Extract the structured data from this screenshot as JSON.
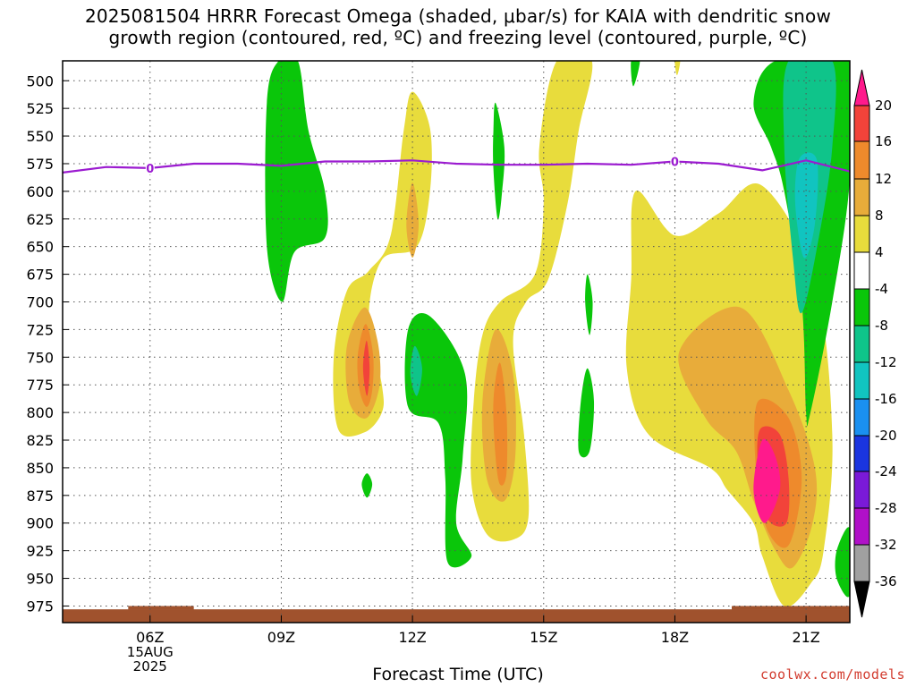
{
  "chart_data": {
    "type": "contour",
    "title_lines": [
      "2025081504 HRRR Forecast Omega (shaded, μbar/s) for KAIA with dendritic snow",
      "growth region (contoured, red, ºC) and freezing level (contoured, purple, ºC)"
    ],
    "xlabel": "Forecast Time (UTC)",
    "credit": "coolwx.com/models",
    "x_ticks": [
      {
        "label": "06Z",
        "hour": 6
      },
      {
        "label": "09Z",
        "hour": 9
      },
      {
        "label": "12Z",
        "hour": 12
      },
      {
        "label": "15Z",
        "hour": 15
      },
      {
        "label": "18Z",
        "hour": 18
      },
      {
        "label": "21Z",
        "hour": 21
      }
    ],
    "date_label_lines": [
      "15AUG",
      "2025"
    ],
    "x_range_hours": [
      4.0,
      22.0
    ],
    "y_axis": {
      "scale": "pressure (hPa), inverted",
      "range": [
        482,
        990
      ],
      "ticks": [
        500,
        525,
        550,
        575,
        600,
        625,
        650,
        675,
        700,
        725,
        750,
        775,
        800,
        825,
        850,
        875,
        900,
        925,
        950,
        975
      ]
    },
    "grid": true,
    "colorbar": {
      "position": "right",
      "labels": [
        "20",
        "16",
        "12",
        "8",
        "4",
        "-4",
        "-8",
        "-12",
        "-16",
        "-20",
        "-24",
        "-28",
        "-32",
        "-36"
      ],
      "boundaries": [
        20,
        16,
        12,
        8,
        4,
        -4,
        -8,
        -12,
        -16,
        -20,
        -24,
        -28,
        -32,
        -36
      ],
      "colors": [
        "#ff1a8c",
        "#f2433a",
        "#ee8a2c",
        "#e8ac3a",
        "#e8dc3c",
        "#ffffff",
        "#0ac60a",
        "#0fc48a",
        "#11c4c0",
        "#1a90f0",
        "#1a35e0",
        "#7a1ad8",
        "#b010c8",
        "#a0a0a0",
        "#000000"
      ]
    },
    "freezing_level": {
      "label": "0",
      "color": "#9b1bd0",
      "points": [
        [
          4.0,
          583
        ],
        [
          5.0,
          578
        ],
        [
          6.0,
          579
        ],
        [
          7.0,
          575
        ],
        [
          8.0,
          575
        ],
        [
          9.0,
          577
        ],
        [
          10.0,
          573
        ],
        [
          11.0,
          573
        ],
        [
          12.0,
          572
        ],
        [
          13.0,
          575
        ],
        [
          14.0,
          576
        ],
        [
          15.0,
          576
        ],
        [
          16.0,
          575
        ],
        [
          17.0,
          576
        ],
        [
          18.0,
          573
        ],
        [
          19.0,
          575
        ],
        [
          20.0,
          581
        ],
        [
          21.0,
          572
        ],
        [
          22.0,
          582
        ]
      ],
      "label_positions_hours": [
        6.0,
        18.0
      ]
    },
    "omega_regions": [
      {
        "color": "#0ac60a",
        "note": "-8",
        "points": [
          [
            8.94,
            482
          ],
          [
            9.38,
            482
          ],
          [
            9.62,
            545
          ],
          [
            10.0,
            600
          ],
          [
            10.0,
            642
          ],
          [
            9.3,
            655
          ],
          [
            9.02,
            700
          ],
          [
            8.67,
            650
          ],
          [
            8.67,
            520
          ]
        ]
      },
      {
        "color": "#e8dc3c",
        "note": "4",
        "points": [
          [
            12.0,
            510
          ],
          [
            12.4,
            543
          ],
          [
            12.4,
            600
          ],
          [
            12.1,
            650
          ],
          [
            11.3,
            662
          ],
          [
            11.0,
            715
          ],
          [
            11.3,
            775
          ],
          [
            11.3,
            800
          ],
          [
            10.9,
            818
          ],
          [
            10.3,
            815
          ],
          [
            10.2,
            750
          ],
          [
            10.5,
            690
          ],
          [
            11.0,
            672
          ],
          [
            11.5,
            640
          ],
          [
            11.8,
            545
          ]
        ]
      },
      {
        "color": "#e8ac3a",
        "note": "8",
        "points": [
          [
            12.0,
            592
          ],
          [
            12.14,
            630
          ],
          [
            12.0,
            660
          ],
          [
            11.86,
            630
          ]
        ]
      },
      {
        "color": "#e8ac3a",
        "note": "8",
        "points": [
          [
            10.9,
            705
          ],
          [
            11.2,
            735
          ],
          [
            11.25,
            775
          ],
          [
            10.95,
            805
          ],
          [
            10.55,
            790
          ],
          [
            10.5,
            740
          ]
        ]
      },
      {
        "color": "#ee8a2c",
        "note": "12",
        "points": [
          [
            10.93,
            720
          ],
          [
            11.1,
            748
          ],
          [
            11.08,
            780
          ],
          [
            10.95,
            795
          ],
          [
            10.78,
            778
          ],
          [
            10.75,
            748
          ]
        ]
      },
      {
        "color": "#f2433a",
        "note": "16",
        "points": [
          [
            10.95,
            735
          ],
          [
            11.02,
            760
          ],
          [
            10.96,
            785
          ],
          [
            10.87,
            760
          ]
        ]
      },
      {
        "color": "#0ac60a",
        "note": "-8",
        "points": [
          [
            10.96,
            855
          ],
          [
            11.08,
            865
          ],
          [
            10.96,
            877
          ],
          [
            10.84,
            865
          ]
        ]
      },
      {
        "color": "#0ac60a",
        "note": "-8",
        "points": [
          [
            11.9,
            725
          ],
          [
            12.4,
            713
          ],
          [
            13.2,
            765
          ],
          [
            13.15,
            840
          ],
          [
            13.0,
            900
          ],
          [
            13.35,
            930
          ],
          [
            12.8,
            935
          ],
          [
            12.75,
            860
          ],
          [
            12.6,
            810
          ],
          [
            11.9,
            795
          ]
        ]
      },
      {
        "color": "#0fc48a",
        "note": "-12",
        "points": [
          [
            12.05,
            740
          ],
          [
            12.22,
            760
          ],
          [
            12.1,
            785
          ],
          [
            11.95,
            765
          ]
        ]
      },
      {
        "color": "#0ac60a",
        "note": "-8",
        "points": [
          [
            13.9,
            520
          ],
          [
            14.1,
            560
          ],
          [
            14.05,
            600
          ],
          [
            13.95,
            625
          ],
          [
            13.85,
            580
          ],
          [
            13.85,
            545
          ]
        ]
      },
      {
        "color": "#e8dc3c",
        "note": "4",
        "points": [
          [
            15.3,
            482
          ],
          [
            16.1,
            482
          ],
          [
            15.8,
            545
          ],
          [
            15.55,
            610
          ],
          [
            15.1,
            680
          ],
          [
            14.6,
            700
          ],
          [
            14.3,
            735
          ],
          [
            14.55,
            820
          ],
          [
            14.65,
            895
          ],
          [
            14.3,
            915
          ],
          [
            13.7,
            910
          ],
          [
            13.35,
            865
          ],
          [
            13.4,
            790
          ],
          [
            13.6,
            730
          ],
          [
            14.0,
            700
          ],
          [
            14.8,
            675
          ],
          [
            15.0,
            610
          ],
          [
            14.9,
            560
          ]
        ]
      },
      {
        "color": "#e8ac3a",
        "note": "8",
        "points": [
          [
            13.9,
            725
          ],
          [
            14.3,
            765
          ],
          [
            14.35,
            840
          ],
          [
            14.1,
            880
          ],
          [
            13.7,
            860
          ],
          [
            13.6,
            790
          ]
        ]
      },
      {
        "color": "#ee8a2c",
        "note": "12",
        "points": [
          [
            14.0,
            755
          ],
          [
            14.15,
            800
          ],
          [
            14.15,
            855
          ],
          [
            14.0,
            865
          ],
          [
            13.9,
            840
          ],
          [
            13.85,
            790
          ]
        ]
      },
      {
        "color": "#0ac60a",
        "note": "-8",
        "points": [
          [
            16.0,
            675
          ],
          [
            16.12,
            700
          ],
          [
            16.05,
            730
          ],
          [
            15.95,
            700
          ]
        ]
      },
      {
        "color": "#0ac60a",
        "note": "-8",
        "points": [
          [
            16.0,
            760
          ],
          [
            16.15,
            790
          ],
          [
            16.05,
            835
          ],
          [
            15.8,
            835
          ],
          [
            15.85,
            790
          ]
        ]
      },
      {
        "color": "#0ac60a",
        "note": "-8",
        "points": [
          [
            17.0,
            482
          ],
          [
            17.2,
            482
          ],
          [
            17.05,
            505
          ]
        ]
      },
      {
        "color": "#e8dc3c",
        "note": "4",
        "points": [
          [
            18.0,
            482
          ],
          [
            18.12,
            482
          ],
          [
            18.05,
            495
          ]
        ]
      },
      {
        "color": "#e8dc3c",
        "note": "4",
        "points": [
          [
            17.1,
            600
          ],
          [
            18.0,
            640
          ],
          [
            19.0,
            620
          ],
          [
            20.0,
            595
          ],
          [
            21.2,
            680
          ],
          [
            21.6,
            820
          ],
          [
            21.4,
            925
          ],
          [
            21.1,
            955
          ],
          [
            20.5,
            975
          ],
          [
            20.0,
            930
          ],
          [
            19.8,
            900
          ],
          [
            19.2,
            870
          ],
          [
            18.8,
            850
          ],
          [
            17.4,
            820
          ],
          [
            16.9,
            760
          ],
          [
            17.0,
            680
          ]
        ]
      },
      {
        "color": "#e8ac3a",
        "note": "8",
        "points": [
          [
            19.5,
            705
          ],
          [
            20.6,
            780
          ],
          [
            21.2,
            850
          ],
          [
            21.15,
            900
          ],
          [
            20.7,
            940
          ],
          [
            20.3,
            925
          ],
          [
            19.8,
            880
          ],
          [
            19.4,
            835
          ],
          [
            18.7,
            805
          ],
          [
            18.1,
            745
          ]
        ]
      },
      {
        "color": "#ee8a2c",
        "note": "12",
        "points": [
          [
            19.9,
            790
          ],
          [
            20.6,
            805
          ],
          [
            20.9,
            860
          ],
          [
            20.6,
            920
          ],
          [
            20.1,
            905
          ],
          [
            19.85,
            850
          ]
        ]
      },
      {
        "color": "#f2433a",
        "note": "16",
        "points": [
          [
            19.95,
            815
          ],
          [
            20.4,
            820
          ],
          [
            20.6,
            860
          ],
          [
            20.55,
            900
          ],
          [
            20.1,
            895
          ],
          [
            19.9,
            850
          ]
        ]
      },
      {
        "color": "#ff1a8c",
        "note": "20",
        "points": [
          [
            20.0,
            825
          ],
          [
            20.3,
            840
          ],
          [
            20.4,
            870
          ],
          [
            20.05,
            900
          ],
          [
            19.8,
            870
          ]
        ]
      },
      {
        "color": "#0ac60a",
        "note": "-8",
        "points": [
          [
            20.3,
            482
          ],
          [
            22.0,
            482
          ],
          [
            22.0,
            590
          ],
          [
            21.6,
            700
          ],
          [
            21.1,
            800
          ],
          [
            21.0,
            800
          ],
          [
            20.9,
            700
          ],
          [
            20.5,
            600
          ],
          [
            20.2,
            560
          ],
          [
            19.8,
            520
          ]
        ]
      },
      {
        "color": "#0fc48a",
        "note": "-12",
        "points": [
          [
            20.6,
            482
          ],
          [
            21.6,
            482
          ],
          [
            21.6,
            560
          ],
          [
            21.3,
            640
          ],
          [
            20.9,
            710
          ],
          [
            20.7,
            660
          ],
          [
            20.5,
            560
          ]
        ]
      },
      {
        "color": "#11c4c0",
        "note": "-16",
        "points": [
          [
            20.85,
            570
          ],
          [
            21.25,
            572
          ],
          [
            21.2,
            630
          ],
          [
            20.95,
            660
          ],
          [
            20.75,
            610
          ]
        ]
      },
      {
        "color": "#0ac60a",
        "note": "-8",
        "points": [
          [
            22.0,
            905
          ],
          [
            22.0,
            965
          ],
          [
            21.7,
            950
          ],
          [
            21.7,
            925
          ]
        ]
      }
    ]
  }
}
